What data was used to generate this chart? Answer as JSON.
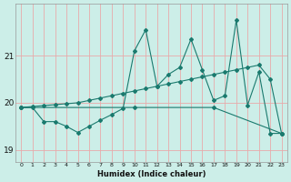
{
  "xlabel": "Humidex (Indice chaleur)",
  "bg_color": "#cceee8",
  "grid_color": "#e8aaaa",
  "line_color": "#1a7a6e",
  "x_min": -0.5,
  "x_max": 23.5,
  "y_min": 18.75,
  "y_max": 22.1,
  "yticks": [
    19,
    20,
    21
  ],
  "xticks": [
    0,
    1,
    2,
    3,
    4,
    5,
    6,
    7,
    8,
    9,
    10,
    11,
    12,
    13,
    14,
    15,
    16,
    17,
    18,
    19,
    20,
    21,
    22,
    23
  ],
  "series1_x": [
    0,
    1,
    2,
    3,
    4,
    5,
    6,
    7,
    8,
    9,
    10,
    11,
    12,
    13,
    14,
    15,
    16,
    17,
    18,
    19,
    20,
    21,
    22,
    23
  ],
  "series1_y": [
    19.9,
    19.9,
    19.6,
    19.6,
    19.5,
    19.37,
    19.5,
    19.63,
    19.75,
    19.88,
    21.1,
    21.55,
    20.35,
    20.6,
    20.75,
    21.35,
    20.7,
    20.05,
    20.15,
    21.75,
    19.95,
    20.65,
    19.35,
    19.35
  ],
  "series2_x": [
    0,
    1,
    2,
    3,
    4,
    5,
    6,
    7,
    8,
    9,
    10,
    11,
    12,
    13,
    14,
    15,
    16,
    17,
    18,
    19,
    20,
    21,
    22,
    23
  ],
  "series2_y": [
    19.9,
    19.92,
    19.94,
    19.96,
    19.98,
    20.0,
    20.05,
    20.1,
    20.15,
    20.2,
    20.25,
    20.3,
    20.35,
    20.4,
    20.45,
    20.5,
    20.55,
    20.6,
    20.65,
    20.7,
    20.75,
    20.8,
    20.5,
    19.35
  ],
  "series3_x": [
    0,
    10,
    17,
    23
  ],
  "series3_y": [
    19.9,
    19.9,
    19.9,
    19.35
  ]
}
